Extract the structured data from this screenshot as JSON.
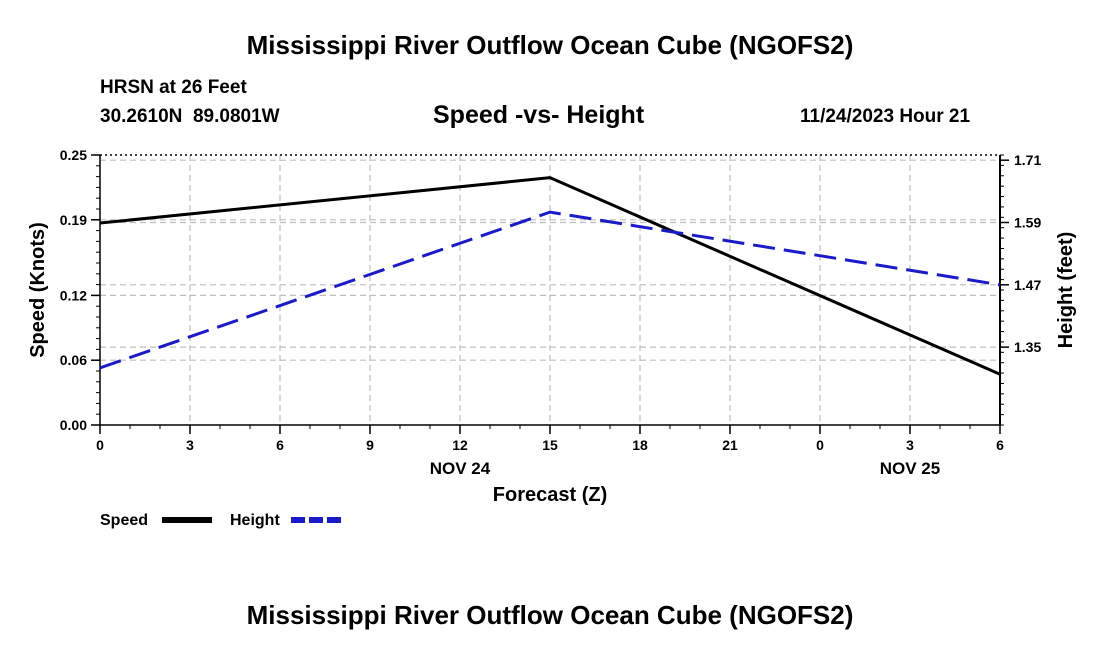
{
  "header": {
    "title": "Mississippi River Outflow Ocean Cube (NGOFS2)",
    "station": "HRSN at 26 Feet",
    "coords": "30.2610N  89.0801W",
    "subtitle": "Speed -vs- Height",
    "datetime": "11/24/2023 Hour 21"
  },
  "footer": {
    "title": "Mississippi River Outflow Ocean Cube (NGOFS2)"
  },
  "colors": {
    "speed": "#000000",
    "height": "#1a1acc",
    "grid": "#bdbdbd"
  },
  "chart_data": {
    "type": "line",
    "title": "Speed -vs- Height",
    "xlabel": "Forecast (Z)",
    "ylabel": "Speed (Knots)",
    "y2label": "Height (feet)",
    "x_index": [
      0,
      1,
      2,
      3,
      4,
      5,
      6,
      7,
      8,
      9,
      10
    ],
    "x_tick_labels": [
      "0",
      "3",
      "6",
      "9",
      "12",
      "15",
      "18",
      "21",
      "0",
      "3",
      "6"
    ],
    "date_labels": [
      {
        "at_index": 4,
        "label": "NOV 24"
      },
      {
        "at_index": 9,
        "label": "NOV 25"
      }
    ],
    "ylim": [
      0,
      0.25
    ],
    "y_ticks": [
      0.0,
      0.06,
      0.12,
      0.19,
      0.25
    ],
    "y_tick_labels": [
      "0.00",
      "0.06",
      "0.12",
      "0.19",
      "0.25"
    ],
    "y2lim": [
      1.2,
      1.72
    ],
    "y2_ticks": [
      1.35,
      1.47,
      1.59,
      1.71
    ],
    "y2_tick_labels": [
      "1.35",
      "1.47",
      "1.59",
      "1.71"
    ],
    "series": [
      {
        "name": "Speed",
        "axis": "left",
        "style": "solid",
        "points": [
          [
            0,
            0.187
          ],
          [
            5,
            0.229
          ],
          [
            10,
            0.047
          ]
        ]
      },
      {
        "name": "Height",
        "axis": "right",
        "style": "dashed",
        "points": [
          [
            0,
            1.31
          ],
          [
            5,
            1.61
          ],
          [
            10,
            1.47
          ]
        ]
      }
    ],
    "legend": [
      {
        "label": "Speed",
        "series": "Speed"
      },
      {
        "label": "Height",
        "series": "Height"
      }
    ],
    "grid": true,
    "legend_position": "bottom-left"
  }
}
